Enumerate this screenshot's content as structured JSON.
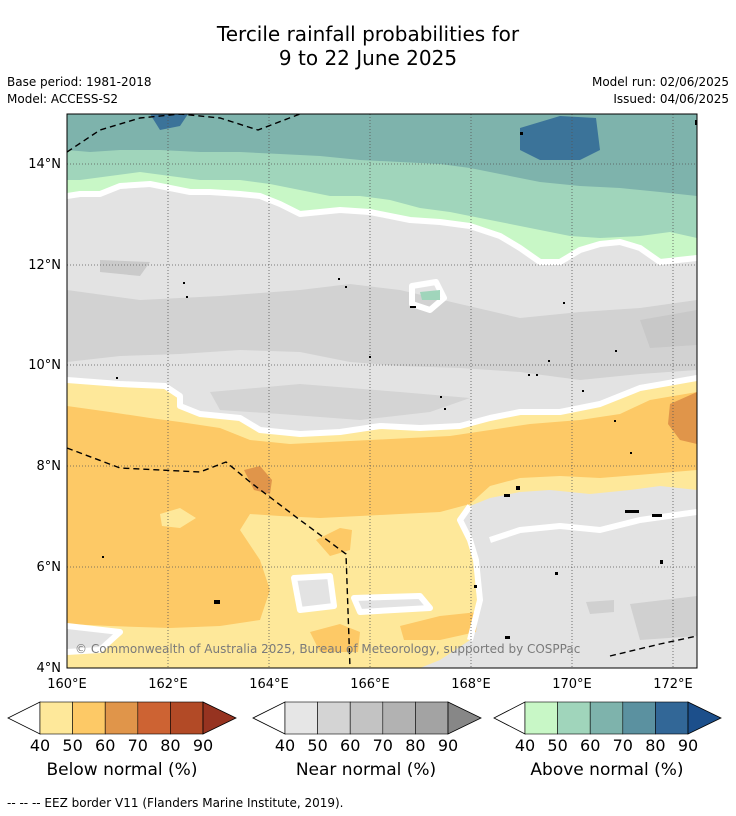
{
  "title_line1": "Tercile rainfall probabilities for",
  "title_line2": "9 to 22 June 2025",
  "base_period": "Base period: 1981-2018",
  "model": "Model: ACCESS-S2",
  "model_run": "Model run: 02/06/2025",
  "issued": "Issued: 04/06/2025",
  "copyright": "© Commonwealth of Australia 2025, Bureau of Meteorology, supported by COSPPac",
  "x_ticks": [
    "160°E",
    "162°E",
    "164°E",
    "166°E",
    "168°E",
    "170°E",
    "172°E"
  ],
  "y_ticks": [
    "14°N",
    "12°N",
    "10°N",
    "8°N",
    "6°N",
    "4°N"
  ],
  "legends": [
    {
      "label": "Below normal (%)",
      "ticks": [
        "40",
        "50",
        "60",
        "70",
        "80",
        "90"
      ],
      "colors": [
        "#fee89a",
        "#fdc966",
        "#e0954a",
        "#cd6333",
        "#b24a26",
        "#963320"
      ]
    },
    {
      "label": "Near normal (%)",
      "ticks": [
        "40",
        "50",
        "60",
        "70",
        "80",
        "90"
      ],
      "colors": [
        "#e6e6e6",
        "#d4d4d4",
        "#c3c3c3",
        "#b2b2b2",
        "#a3a3a3",
        "#878787"
      ]
    },
    {
      "label": "Above normal (%)",
      "ticks": [
        "40",
        "50",
        "60",
        "70",
        "80",
        "90"
      ],
      "colors": [
        "#c8f7c6",
        "#a0d5bb",
        "#7eb3ac",
        "#5b91a0",
        "#326797",
        "#1c4f8b"
      ]
    }
  ],
  "eez_note": "-- -- -- EEZ border V11 (Flanders Marine Institute, 2019)."
}
